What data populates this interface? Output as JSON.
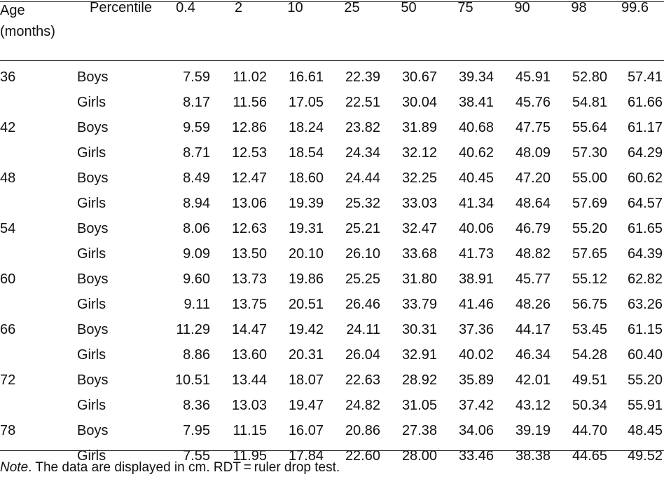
{
  "table": {
    "headers": {
      "age_line1": "Age",
      "age_line2": "(months)",
      "percentile": "Percentile",
      "columns": [
        "0.4",
        "2",
        "10",
        "25",
        "50",
        "75",
        "90",
        "98",
        "99.6"
      ]
    },
    "groups": [
      {
        "age": "36",
        "rows": [
          {
            "sex": "Boys",
            "values": [
              "7.59",
              "11.02",
              "16.61",
              "22.39",
              "30.67",
              "39.34",
              "45.91",
              "52.80",
              "57.41"
            ]
          },
          {
            "sex": "Girls",
            "values": [
              "8.17",
              "11.56",
              "17.05",
              "22.51",
              "30.04",
              "38.41",
              "45.76",
              "54.81",
              "61.66"
            ]
          }
        ]
      },
      {
        "age": "42",
        "rows": [
          {
            "sex": "Boys",
            "values": [
              "9.59",
              "12.86",
              "18.24",
              "23.82",
              "31.89",
              "40.68",
              "47.75",
              "55.64",
              "61.17"
            ]
          },
          {
            "sex": "Girls",
            "values": [
              "8.71",
              "12.53",
              "18.54",
              "24.34",
              "32.12",
              "40.62",
              "48.09",
              "57.30",
              "64.29"
            ]
          }
        ]
      },
      {
        "age": "48",
        "rows": [
          {
            "sex": "Boys",
            "values": [
              "8.49",
              "12.47",
              "18.60",
              "24.44",
              "32.25",
              "40.45",
              "47.20",
              "55.00",
              "60.62"
            ]
          },
          {
            "sex": "Girls",
            "values": [
              "8.94",
              "13.06",
              "19.39",
              "25.32",
              "33.03",
              "41.34",
              "48.64",
              "57.69",
              "64.57"
            ]
          }
        ]
      },
      {
        "age": "54",
        "rows": [
          {
            "sex": "Boys",
            "values": [
              "8.06",
              "12.63",
              "19.31",
              "25.21",
              "32.47",
              "40.06",
              "46.79",
              "55.20",
              "61.65"
            ]
          },
          {
            "sex": "Girls",
            "values": [
              "9.09",
              "13.50",
              "20.10",
              "26.10",
              "33.68",
              "41.73",
              "48.82",
              "57.65",
              "64.39"
            ]
          }
        ]
      },
      {
        "age": "60",
        "rows": [
          {
            "sex": "Boys",
            "values": [
              "9.60",
              "13.73",
              "19.86",
              "25.25",
              "31.80",
              "38.91",
              "45.77",
              "55.12",
              "62.82"
            ]
          },
          {
            "sex": "Girls",
            "values": [
              "9.11",
              "13.75",
              "20.51",
              "26.46",
              "33.79",
              "41.46",
              "48.26",
              "56.75",
              "63.26"
            ]
          }
        ]
      },
      {
        "age": "66",
        "rows": [
          {
            "sex": "Boys",
            "values": [
              "11.29",
              "14.47",
              "19.42",
              "24.11",
              "30.31",
              "37.36",
              "44.17",
              "53.45",
              "61.15"
            ]
          },
          {
            "sex": "Girls",
            "values": [
              "8.86",
              "13.60",
              "20.31",
              "26.04",
              "32.91",
              "40.02",
              "46.34",
              "54.28",
              "60.40"
            ]
          }
        ]
      },
      {
        "age": "72",
        "rows": [
          {
            "sex": "Boys",
            "values": [
              "10.51",
              "13.44",
              "18.07",
              "22.63",
              "28.92",
              "35.89",
              "42.01",
              "49.51",
              "55.20"
            ]
          },
          {
            "sex": "Girls",
            "values": [
              "8.36",
              "13.03",
              "19.47",
              "24.82",
              "31.05",
              "37.42",
              "43.12",
              "50.34",
              "55.91"
            ]
          }
        ]
      },
      {
        "age": "78",
        "rows": [
          {
            "sex": "Boys",
            "values": [
              "7.95",
              "11.15",
              "16.07",
              "20.86",
              "27.38",
              "34.06",
              "39.19",
              "44.70",
              "48.45"
            ]
          },
          {
            "sex": "Girls",
            "values": [
              "7.55",
              "11.95",
              "17.84",
              "22.60",
              "28.00",
              "33.46",
              "38.38",
              "44.65",
              "49.52"
            ]
          }
        ]
      }
    ]
  },
  "note": {
    "label": "Note",
    "text": ". The data are displayed in cm. RDT = ruler drop test."
  }
}
